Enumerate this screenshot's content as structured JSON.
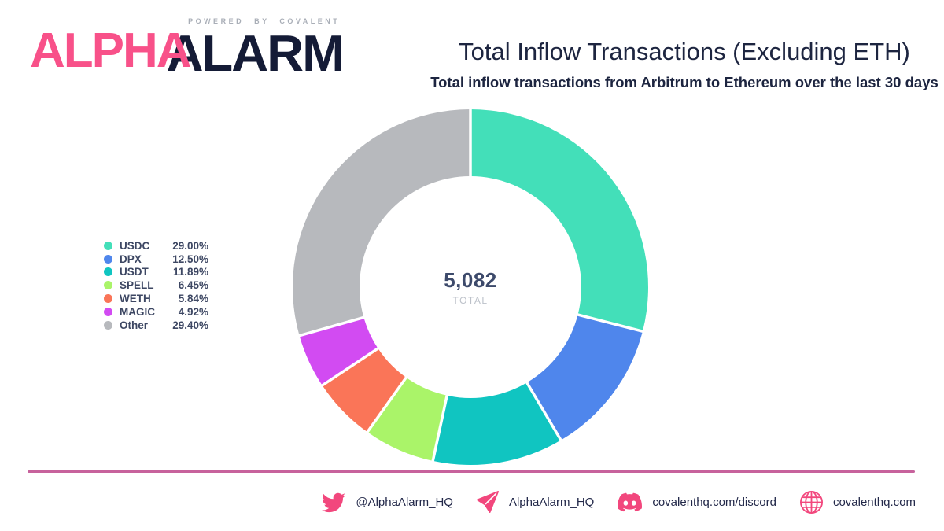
{
  "brand": {
    "logo_alpha": "ALPHA",
    "logo_alarm": "ALARM",
    "powered_by": "POWERED BY COVALENT",
    "pink": "#F85189",
    "navy": "#141B36"
  },
  "header": {
    "title": "Total Inflow Transactions (Excluding ETH)",
    "subtitle": "Total inflow transactions from Arbitrum to Ethereum over the last 30 days"
  },
  "chart_data": {
    "type": "pie",
    "donut": true,
    "title": "Total Inflow Transactions (Excluding ETH)",
    "start_angle_deg": 0,
    "direction": "clockwise",
    "center_total": "5,082",
    "center_label": "TOTAL",
    "legend_position": "left",
    "series": [
      {
        "name": "USDC",
        "value": 29.0,
        "percent_label": "29.00%",
        "color": "#43DFB9"
      },
      {
        "name": "DPX",
        "value": 12.5,
        "percent_label": "12.50%",
        "color": "#4F86EC"
      },
      {
        "name": "USDT",
        "value": 11.89,
        "percent_label": "11.89%",
        "color": "#10C5C1"
      },
      {
        "name": "SPELL",
        "value": 6.45,
        "percent_label": "6.45%",
        "color": "#AAF469"
      },
      {
        "name": "WETH",
        "value": 5.84,
        "percent_label": "5.84%",
        "color": "#FA7558"
      },
      {
        "name": "MAGIC",
        "value": 4.92,
        "percent_label": "4.92%",
        "color": "#D24BF2"
      },
      {
        "name": "Other",
        "value": 29.4,
        "percent_label": "29.40%",
        "color": "#B7B9BD"
      }
    ]
  },
  "footer": {
    "divider_color": "#C7629C",
    "icon_color": "#F2477D",
    "links": [
      {
        "icon": "twitter-icon",
        "label": "@AlphaAlarm_HQ"
      },
      {
        "icon": "telegram-icon",
        "label": "AlphaAlarm_HQ"
      },
      {
        "icon": "discord-icon",
        "label": "covalenthq.com/discord"
      },
      {
        "icon": "globe-icon",
        "label": "covalenthq.com"
      }
    ]
  }
}
